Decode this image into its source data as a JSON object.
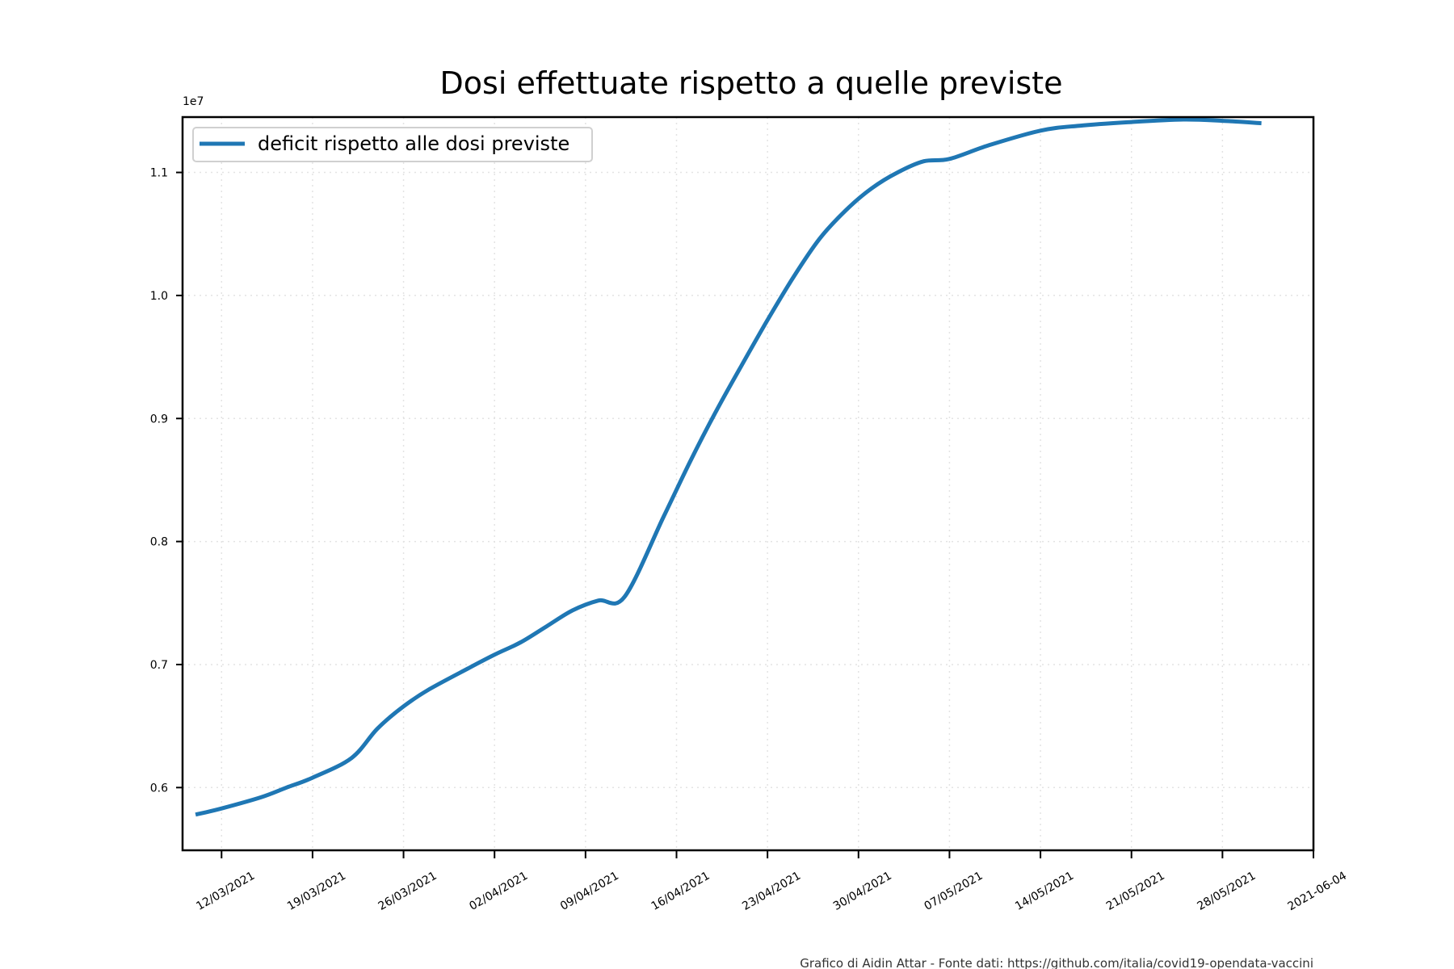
{
  "chart_data": {
    "type": "line",
    "title": "Dosi effettuate rispetto a quelle previste",
    "xlabel": "",
    "ylabel": "",
    "y_multiplier_label": "1e7",
    "y_tick_labels": [
      "0.6",
      "0.7",
      "0.8",
      "0.9",
      "1.0",
      "1.1"
    ],
    "y_tick_values": [
      0.6,
      0.7,
      0.8,
      0.9,
      1.0,
      1.1
    ],
    "ylim": [
      0.549,
      1.145
    ],
    "xlim": [
      "2021-03-09",
      "2021-06-04"
    ],
    "x_tick_dates": [
      "2021-03-12",
      "2021-03-19",
      "2021-03-26",
      "2021-04-02",
      "2021-04-09",
      "2021-04-16",
      "2021-04-23",
      "2021-04-30",
      "2021-05-07",
      "2021-05-14",
      "2021-05-21",
      "2021-05-28",
      "2021-06-04"
    ],
    "x_tick_labels": [
      "12/03/2021",
      "19/03/2021",
      "26/03/2021",
      "02/04/2021",
      "09/04/2021",
      "16/04/2021",
      "23/04/2021",
      "30/04/2021",
      "07/05/2021",
      "14/05/2021",
      "21/05/2021",
      "28/05/2021",
      "2021-06-04"
    ],
    "grid": true,
    "legend_position": "upper-left",
    "series": [
      {
        "name": "deficit rispetto alle dosi previste",
        "color": "#1f77b4",
        "x": [
          "2021-03-10",
          "2021-03-12",
          "2021-03-15",
          "2021-03-17",
          "2021-03-19",
          "2021-03-22",
          "2021-03-24",
          "2021-03-26",
          "2021-03-28",
          "2021-03-31",
          "2021-04-02",
          "2021-04-04",
          "2021-04-06",
          "2021-04-08",
          "2021-04-10",
          "2021-04-12",
          "2021-04-15",
          "2021-04-17",
          "2021-04-19",
          "2021-04-21",
          "2021-04-23",
          "2021-04-25",
          "2021-04-27",
          "2021-04-29",
          "2021-05-01",
          "2021-05-03",
          "2021-05-05",
          "2021-05-07",
          "2021-05-10",
          "2021-05-14",
          "2021-05-17",
          "2021-05-21",
          "2021-05-25",
          "2021-05-28",
          "2021-05-31"
        ],
        "values": [
          0.578,
          0.583,
          0.592,
          0.6,
          0.608,
          0.624,
          0.648,
          0.666,
          0.68,
          0.697,
          0.708,
          0.718,
          0.731,
          0.744,
          0.752,
          0.755,
          0.82,
          0.864,
          0.905,
          0.943,
          0.98,
          1.015,
          1.046,
          1.069,
          1.087,
          1.1,
          1.109,
          1.111,
          1.122,
          1.134,
          1.138,
          1.141,
          1.143,
          1.142,
          1.14
        ]
      }
    ]
  },
  "footer": "Grafico di Aidin Attar - Fonte dati: https://github.com/italia/covid19-opendata-vaccini"
}
